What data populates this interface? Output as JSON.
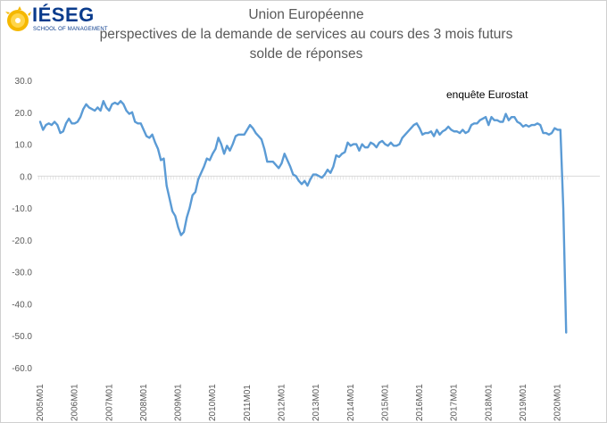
{
  "logo": {
    "wordmark": "IÉSEG",
    "tagline": "SCHOOL OF MANAGEMENT"
  },
  "chart_data": {
    "type": "line",
    "title": "Union Européenne",
    "subtitle_lines": [
      "perspectives de la demande de services au cours des 3 mois futurs",
      "solde de réponses"
    ],
    "annotation": "enquête Eurostat",
    "xlabel": "",
    "ylabel": "",
    "ylim": [
      -60,
      30
    ],
    "yticks": [
      30,
      20,
      10,
      0,
      -10,
      -20,
      -30,
      -40,
      -50,
      -60
    ],
    "ytick_labels": [
      "30.0",
      "20.0",
      "10.0",
      "0.0",
      "-10.0",
      "-20.0",
      "-30.0",
      "-40.0",
      "-50.0",
      "-60.0"
    ],
    "xtick_labels": [
      "2005M01",
      "2006M01",
      "2007M01",
      "2008M01",
      "2009M01",
      "2010M01",
      "2011M01",
      "2012M01",
      "2013M01",
      "2014M01",
      "2015M01",
      "2016M01",
      "2017M01",
      "2018M01",
      "2019M01",
      "2020M01"
    ],
    "grid": false,
    "legend": "none",
    "line_color": "#5b9bd5",
    "series": [
      {
        "start": "2005M01",
        "values": [
          17.0,
          14.5,
          16.0,
          16.5,
          16.0,
          17.0,
          16.0,
          13.5,
          14.0,
          16.5,
          18.0,
          16.5,
          16.5,
          17.0,
          18.5,
          21.0,
          22.5,
          21.5,
          21.0,
          20.5,
          21.5,
          20.5,
          23.5,
          21.5,
          20.5,
          22.5,
          23.0,
          22.5,
          23.5,
          22.5,
          20.5,
          19.5,
          20.0,
          17.0,
          16.5,
          16.5,
          14.5,
          12.5,
          12.0,
          13.0,
          10.5,
          8.5,
          5.0,
          5.5,
          -3.0,
          -7.0,
          -11.0,
          -12.5,
          -16.0,
          -18.5,
          -17.5,
          -13.0,
          -10.0,
          -6.0,
          -5.0,
          -1.0,
          1.0,
          3.0,
          5.5,
          5.0,
          7.0,
          8.5,
          12.0,
          10.0,
          7.0,
          9.5,
          8.0,
          10.0,
          12.5,
          13.0,
          13.0,
          13.0,
          14.5,
          16.0,
          15.0,
          13.5,
          12.5,
          11.5,
          8.5,
          4.5,
          4.5,
          4.5,
          3.5,
          2.5,
          4.0,
          7.0,
          5.0,
          3.0,
          0.5,
          0.0,
          -1.5,
          -2.5,
          -1.5,
          -3.0,
          -1.0,
          0.5,
          0.5,
          0.0,
          -0.5,
          0.5,
          2.0,
          1.0,
          3.0,
          6.5,
          6.0,
          7.0,
          7.5,
          10.5,
          9.5,
          10.0,
          10.0,
          8.0,
          10.0,
          9.0,
          9.0,
          10.5,
          10.0,
          9.0,
          10.5,
          11.0,
          10.0,
          9.5,
          10.5,
          9.5,
          9.5,
          10.0,
          12.0,
          13.0,
          14.0,
          15.0,
          16.0,
          16.5,
          15.0,
          13.0,
          13.5,
          13.5,
          14.0,
          12.5,
          14.5,
          13.0,
          14.0,
          14.5,
          15.5,
          14.5,
          14.0,
          14.0,
          13.5,
          14.5,
          13.5,
          14.0,
          16.0,
          16.5,
          16.5,
          17.5,
          18.0,
          18.5,
          16.0,
          18.5,
          17.5,
          17.5,
          17.0,
          17.0,
          19.5,
          17.5,
          18.5,
          18.5,
          17.0,
          16.5,
          15.5,
          16.0,
          15.5,
          16.0,
          16.0,
          16.5,
          16.0,
          13.5,
          13.5,
          13.0,
          13.5,
          15.0,
          14.5,
          14.5,
          -10.0,
          -49.0
        ]
      }
    ]
  }
}
